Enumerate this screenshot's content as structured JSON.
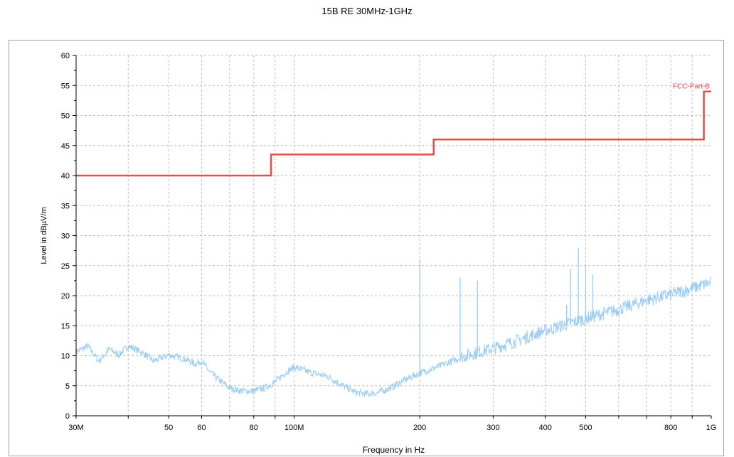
{
  "chart_data": {
    "type": "line",
    "title": "15B RE 30MHz-1GHz",
    "xlabel": "Frequency in Hz",
    "ylabel": "Level in dBµV/m",
    "x_scale": "log",
    "xlim": [
      30000000,
      1000000000
    ],
    "ylim": [
      0,
      60
    ],
    "grid": true,
    "y_ticks": [
      0,
      5,
      10,
      15,
      20,
      25,
      30,
      35,
      40,
      45,
      50,
      55,
      60
    ],
    "x_tick_labels": [
      {
        "value": 30000000,
        "label": "30M"
      },
      {
        "value": 50000000,
        "label": "50"
      },
      {
        "value": 60000000,
        "label": "60"
      },
      {
        "value": 80000000,
        "label": "80"
      },
      {
        "value": 100000000,
        "label": "100M"
      },
      {
        "value": 200000000,
        "label": "200"
      },
      {
        "value": 300000000,
        "label": "300"
      },
      {
        "value": 400000000,
        "label": "400"
      },
      {
        "value": 500000000,
        "label": "500"
      },
      {
        "value": 800000000,
        "label": "800"
      },
      {
        "value": 1000000000,
        "label": "1G"
      }
    ],
    "x_grid_values": [
      30000000,
      40000000,
      50000000,
      60000000,
      70000000,
      80000000,
      90000000,
      100000000,
      200000000,
      300000000,
      400000000,
      500000000,
      600000000,
      700000000,
      800000000,
      900000000,
      1000000000
    ],
    "series": [
      {
        "name": "FCC-Part-B",
        "color": "#e84c4c",
        "step": true,
        "x": [
          30000000,
          88000000,
          88000000,
          216000000,
          216000000,
          960000000,
          960000000,
          1000000000
        ],
        "y": [
          40,
          40,
          43.5,
          43.5,
          46,
          46,
          54,
          54
        ]
      },
      {
        "color": "#99ccf5",
        "x": [
          30000000,
          32000000,
          34000000,
          36000000,
          38000000,
          40000000,
          43000000,
          46000000,
          50000000,
          54000000,
          58000000,
          60000000,
          63000000,
          67000000,
          70000000,
          75000000,
          80000000,
          85000000,
          90000000,
          95000000,
          100000000,
          105000000,
          110000000,
          120000000,
          130000000,
          140000000,
          150000000,
          160000000,
          170000000,
          180000000,
          200000000,
          220000000,
          250000000,
          280000000,
          300000000,
          350000000,
          400000000,
          450000000,
          500000000,
          600000000,
          700000000,
          800000000,
          900000000,
          1000000000
        ],
        "y": [
          10.5,
          11.5,
          9,
          11,
          10,
          11.5,
          10.5,
          9,
          10,
          9.5,
          8.5,
          9,
          7,
          5.5,
          4.5,
          4,
          4,
          4.5,
          5.5,
          7,
          8,
          7.5,
          7,
          6.5,
          5,
          3.8,
          3.5,
          3.8,
          4.5,
          5.5,
          7,
          8,
          9.5,
          10.5,
          11,
          12.5,
          14,
          15,
          16,
          17.5,
          19,
          20,
          21,
          22
        ]
      }
    ],
    "spikes": [
      {
        "x": 200000000,
        "y": 26
      },
      {
        "x": 250000000,
        "y": 23
      },
      {
        "x": 275000000,
        "y": 22.5
      },
      {
        "x": 480000000,
        "y": 28
      },
      {
        "x": 460000000,
        "y": 24.5
      },
      {
        "x": 500000000,
        "y": 25
      },
      {
        "x": 520000000,
        "y": 23.5
      },
      {
        "x": 450000000,
        "y": 18.5
      }
    ]
  }
}
